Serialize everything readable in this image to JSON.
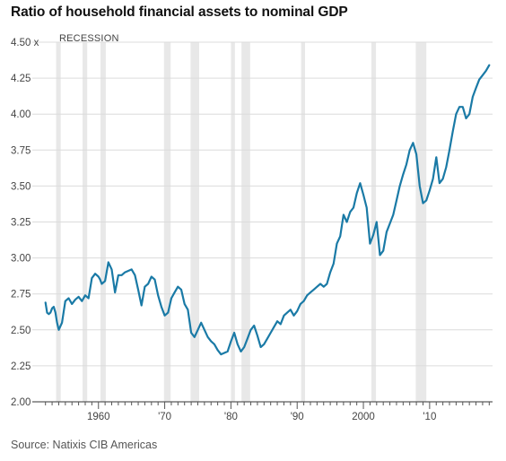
{
  "title": "Ratio of household financial assets to nominal GDP",
  "source": "Source: Natixis CIB Americas",
  "chart_data": {
    "type": "line",
    "title": "Ratio of household financial assets to nominal GDP",
    "xlabel": "",
    "ylabel": "",
    "xlim": [
      1951.5,
      2019.5
    ],
    "ylim": [
      2.0,
      4.5
    ],
    "y_ticks": [
      2.0,
      2.25,
      2.5,
      2.75,
      3.0,
      3.25,
      3.5,
      3.75,
      4.0,
      4.25,
      4.5
    ],
    "y_tick_labels": [
      "2.00",
      "2.25",
      "2.50",
      "2.75",
      "3.00",
      "3.25",
      "3.50",
      "3.75",
      "4.00",
      "4.25",
      "4.50 x"
    ],
    "x_ticks": [
      1960,
      1970,
      1980,
      1990,
      2000,
      2010
    ],
    "x_tick_labels": [
      "1960",
      "'70",
      "'80",
      "'90",
      "2000",
      "'10"
    ],
    "grid": "horizontal",
    "line_color": "#1a7aa6",
    "recession_color": "#e8e8e8",
    "recession_label": "RECESSION",
    "recessions": [
      [
        1953.6,
        1954.3
      ],
      [
        1957.6,
        1958.3
      ],
      [
        1960.3,
        1961.1
      ],
      [
        1969.9,
        1970.9
      ],
      [
        1973.9,
        1975.2
      ],
      [
        1980.0,
        1980.6
      ],
      [
        1981.6,
        1982.9
      ],
      [
        1990.6,
        1991.2
      ],
      [
        2001.2,
        2001.9
      ],
      [
        2007.9,
        2009.5
      ]
    ],
    "series": [
      {
        "x": [
          1952.0,
          1952.25,
          1952.5,
          1952.75,
          1953.0,
          1953.25,
          1953.5,
          1953.75,
          1954.0,
          1954.5,
          1955.0,
          1955.5,
          1956.0,
          1956.5,
          1957.0,
          1957.5,
          1958.0,
          1958.5,
          1959.0,
          1959.5,
          1960.0,
          1960.25,
          1960.5,
          1960.75,
          1961.0,
          1961.5,
          1962.0,
          1962.5,
          1963.0,
          1963.5,
          1964.0,
          1964.5,
          1965.0,
          1965.5,
          1966.0,
          1966.5,
          1967.0,
          1967.5,
          1968.0,
          1968.5,
          1969.0,
          1969.5,
          1970.0,
          1970.5,
          1971.0,
          1971.5,
          1972.0,
          1972.5,
          1973.0,
          1973.5,
          1974.0,
          1974.5,
          1975.0,
          1975.5,
          1976.0,
          1976.5,
          1977.0,
          1977.5,
          1978.0,
          1978.5,
          1979.0,
          1979.5,
          1980.0,
          1980.5,
          1981.0,
          1981.5,
          1982.0,
          1982.5,
          1983.0,
          1983.5,
          1984.0,
          1984.5,
          1985.0,
          1985.5,
          1986.0,
          1986.5,
          1987.0,
          1987.5,
          1988.0,
          1988.5,
          1989.0,
          1989.5,
          1990.0,
          1990.5,
          1991.0,
          1991.5,
          1992.0,
          1992.5,
          1993.0,
          1993.5,
          1994.0,
          1994.5,
          1995.0,
          1995.5,
          1996.0,
          1996.5,
          1997.0,
          1997.5,
          1998.0,
          1998.5,
          1999.0,
          1999.5,
          2000.0,
          2000.5,
          2001.0,
          2001.5,
          2002.0,
          2002.5,
          2003.0,
          2003.5,
          2004.0,
          2004.5,
          2005.0,
          2005.5,
          2006.0,
          2006.5,
          2007.0,
          2007.5,
          2008.0,
          2008.5,
          2009.0,
          2009.5,
          2010.0,
          2010.5,
          2011.0,
          2011.5,
          2012.0,
          2012.5,
          2013.0,
          2013.5,
          2014.0,
          2014.5,
          2015.0,
          2015.5,
          2016.0,
          2016.5,
          2017.0,
          2017.5,
          2018.0,
          2018.5,
          2019.0
        ],
        "y": [
          2.69,
          2.62,
          2.61,
          2.62,
          2.65,
          2.66,
          2.62,
          2.55,
          2.5,
          2.55,
          2.7,
          2.72,
          2.68,
          2.71,
          2.73,
          2.7,
          2.74,
          2.72,
          2.86,
          2.89,
          2.87,
          2.85,
          2.82,
          2.83,
          2.84,
          2.97,
          2.92,
          2.76,
          2.88,
          2.88,
          2.9,
          2.91,
          2.92,
          2.88,
          2.78,
          2.67,
          2.8,
          2.82,
          2.87,
          2.85,
          2.74,
          2.66,
          2.6,
          2.62,
          2.72,
          2.76,
          2.8,
          2.78,
          2.68,
          2.64,
          2.48,
          2.45,
          2.5,
          2.55,
          2.5,
          2.45,
          2.42,
          2.4,
          2.36,
          2.33,
          2.34,
          2.35,
          2.42,
          2.48,
          2.4,
          2.35,
          2.38,
          2.44,
          2.5,
          2.53,
          2.46,
          2.38,
          2.4,
          2.44,
          2.48,
          2.52,
          2.56,
          2.54,
          2.6,
          2.62,
          2.64,
          2.6,
          2.63,
          2.68,
          2.7,
          2.74,
          2.76,
          2.78,
          2.8,
          2.82,
          2.8,
          2.82,
          2.9,
          2.96,
          3.1,
          3.15,
          3.3,
          3.25,
          3.32,
          3.35,
          3.45,
          3.52,
          3.44,
          3.35,
          3.1,
          3.16,
          3.25,
          3.02,
          3.05,
          3.18,
          3.24,
          3.3,
          3.4,
          3.5,
          3.58,
          3.65,
          3.75,
          3.8,
          3.72,
          3.5,
          3.38,
          3.4,
          3.47,
          3.55,
          3.7,
          3.52,
          3.55,
          3.63,
          3.75,
          3.88,
          4.0,
          4.05,
          4.05,
          3.97,
          4.0,
          4.12,
          4.18,
          4.24,
          4.27,
          4.3,
          4.34
        ]
      }
    ]
  }
}
